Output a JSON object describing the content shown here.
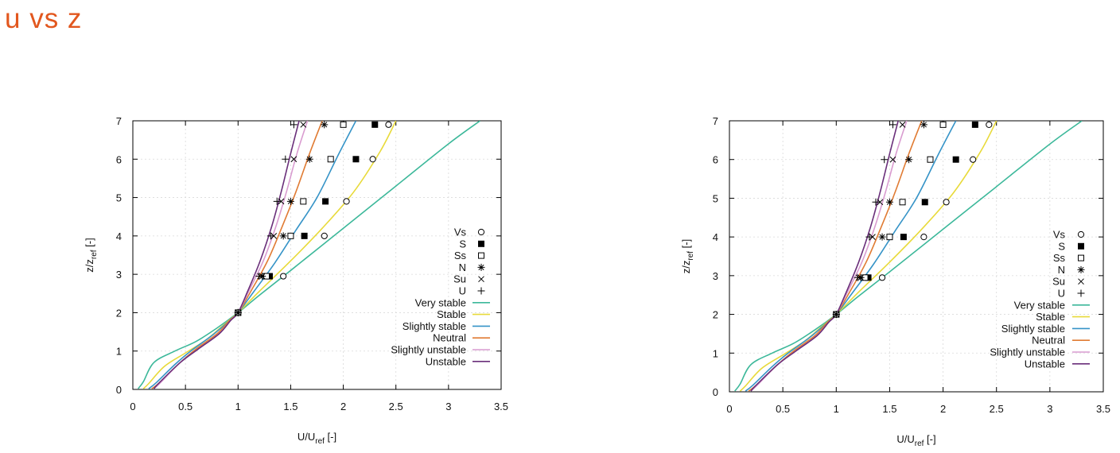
{
  "page": {
    "title": "u vs z"
  },
  "chart_data": [
    {
      "type": "line",
      "title": "",
      "xlabel": "U/U",
      "xlabel_sub": "ref",
      "xlabel_suffix": " [-]",
      "ylabel": "z/z",
      "ylabel_sub": "ref",
      "ylabel_suffix": " [-]",
      "xlim": [
        0,
        3.5
      ],
      "ylim": [
        0,
        7
      ],
      "xticks": [
        "0",
        "0.5",
        "1",
        "1.5",
        "2",
        "2.5",
        "3",
        "3.5"
      ],
      "yticks": [
        "0",
        "1",
        "2",
        "3",
        "4",
        "5",
        "6",
        "7"
      ],
      "grid": true,
      "legend_position": "right",
      "series": [
        {
          "name": "Very stable",
          "color": "#3cb89a",
          "marker": "line",
          "x": [
            0.05,
            0.1,
            0.2,
            0.4,
            0.6,
            0.8,
            1.0,
            1.2,
            1.5,
            2.0,
            2.5,
            3.0,
            3.3
          ],
          "y": [
            0.02,
            0.2,
            0.7,
            1.0,
            1.25,
            1.6,
            2.0,
            2.45,
            3.1,
            4.2,
            5.3,
            6.4,
            7.0
          ]
        },
        {
          "name": "Stable",
          "color": "#e8da3a",
          "marker": "line",
          "x": [
            0.1,
            0.15,
            0.3,
            0.5,
            0.7,
            0.85,
            1.0,
            1.2,
            1.5,
            1.8,
            2.1,
            2.35,
            2.5
          ],
          "y": [
            0.02,
            0.15,
            0.6,
            0.95,
            1.3,
            1.65,
            2.0,
            2.55,
            3.35,
            4.2,
            5.15,
            6.2,
            7.0
          ]
        },
        {
          "name": "Slightly stable",
          "color": "#3593c7",
          "marker": "line",
          "x": [
            0.15,
            0.22,
            0.4,
            0.55,
            0.75,
            0.9,
            1.0,
            1.15,
            1.35,
            1.55,
            1.75,
            1.95,
            2.12
          ],
          "y": [
            0.02,
            0.17,
            0.65,
            1.0,
            1.4,
            1.75,
            2.0,
            2.55,
            3.3,
            4.15,
            5.0,
            6.1,
            7.0
          ]
        },
        {
          "name": "Neutral",
          "color": "#e07b33",
          "marker": "line",
          "x": [
            0.18,
            0.25,
            0.45,
            0.6,
            0.8,
            0.92,
            1.0,
            1.12,
            1.28,
            1.42,
            1.55,
            1.68,
            1.8
          ],
          "y": [
            0.02,
            0.17,
            0.7,
            1.05,
            1.45,
            1.8,
            2.0,
            2.55,
            3.35,
            4.25,
            5.15,
            6.15,
            7.0
          ]
        },
        {
          "name": "Slightly unstable",
          "color": "#d99cd0",
          "marker": "line",
          "x": [
            0.2,
            0.26,
            0.45,
            0.62,
            0.82,
            0.93,
            1.0,
            1.1,
            1.24,
            1.36,
            1.46,
            1.56,
            1.66
          ],
          "y": [
            0.02,
            0.17,
            0.7,
            1.05,
            1.45,
            1.8,
            2.0,
            2.55,
            3.35,
            4.25,
            5.15,
            6.15,
            7.0
          ]
        },
        {
          "name": "Unstable",
          "color": "#6a2f7a",
          "marker": "line",
          "x": [
            0.2,
            0.25,
            0.45,
            0.62,
            0.82,
            0.93,
            1.0,
            1.09,
            1.21,
            1.32,
            1.41,
            1.5,
            1.58
          ],
          "y": [
            0.02,
            0.17,
            0.7,
            1.05,
            1.45,
            1.8,
            2.0,
            2.55,
            3.35,
            4.25,
            5.15,
            6.15,
            7.0
          ]
        },
        {
          "name": "Vs",
          "color": "#000000",
          "marker": "circle",
          "x": [
            1.0,
            1.43,
            1.82,
            2.03,
            2.28,
            2.43
          ],
          "y": [
            2.0,
            2.95,
            4.0,
            4.9,
            6.0,
            6.9
          ]
        },
        {
          "name": "S",
          "color": "#000000",
          "marker": "filled-square",
          "x": [
            1.0,
            1.3,
            1.63,
            1.83,
            2.12,
            2.3
          ],
          "y": [
            2.0,
            2.95,
            4.0,
            4.9,
            6.0,
            6.9
          ]
        },
        {
          "name": "Ss",
          "color": "#000000",
          "marker": "open-square",
          "x": [
            1.0,
            1.27,
            1.5,
            1.62,
            1.88,
            2.0
          ],
          "y": [
            2.0,
            2.95,
            4.0,
            4.9,
            6.0,
            6.9
          ]
        },
        {
          "name": "N",
          "color": "#000000",
          "marker": "asterisk",
          "x": [
            1.0,
            1.23,
            1.43,
            1.5,
            1.68,
            1.82
          ],
          "y": [
            2.0,
            2.95,
            4.0,
            4.9,
            6.0,
            6.9
          ]
        },
        {
          "name": "Su",
          "color": "#000000",
          "marker": "cross",
          "x": [
            1.0,
            1.21,
            1.34,
            1.41,
            1.53,
            1.62
          ],
          "y": [
            2.0,
            2.95,
            4.0,
            4.9,
            6.0,
            6.9
          ]
        },
        {
          "name": "U",
          "color": "#000000",
          "marker": "plus",
          "x": [
            1.0,
            1.2,
            1.31,
            1.37,
            1.45,
            1.53
          ],
          "y": [
            2.0,
            2.95,
            4.0,
            4.9,
            6.0,
            6.9
          ]
        }
      ]
    },
    {
      "type": "line",
      "title": "",
      "xlabel": "U/U",
      "xlabel_sub": "ref",
      "xlabel_suffix": " [-]",
      "ylabel": "z/z",
      "ylabel_sub": "ref",
      "ylabel_suffix": " [-]",
      "xlim": [
        0,
        3.5
      ],
      "ylim": [
        0,
        7
      ],
      "xticks": [
        "0",
        "0.5",
        "1",
        "1.5",
        "2",
        "2.5",
        "3",
        "3.5"
      ],
      "yticks": [
        "0",
        "1",
        "2",
        "3",
        "4",
        "5",
        "6",
        "7"
      ],
      "grid": true,
      "legend_position": "right",
      "series": [
        {
          "name": "Very stable",
          "color": "#3cb89a",
          "marker": "line",
          "x": [
            0.05,
            0.1,
            0.2,
            0.4,
            0.6,
            0.8,
            1.0,
            1.2,
            1.5,
            2.0,
            2.5,
            3.0,
            3.3
          ],
          "y": [
            0.02,
            0.2,
            0.7,
            1.0,
            1.25,
            1.6,
            2.0,
            2.45,
            3.1,
            4.2,
            5.3,
            6.4,
            7.0
          ]
        },
        {
          "name": "Stable",
          "color": "#e8da3a",
          "marker": "line",
          "x": [
            0.1,
            0.15,
            0.3,
            0.5,
            0.7,
            0.85,
            1.0,
            1.2,
            1.5,
            1.8,
            2.1,
            2.35,
            2.5
          ],
          "y": [
            0.02,
            0.15,
            0.6,
            0.95,
            1.3,
            1.65,
            2.0,
            2.55,
            3.35,
            4.2,
            5.15,
            6.2,
            7.0
          ]
        },
        {
          "name": "Slightly stable",
          "color": "#3593c7",
          "marker": "line",
          "x": [
            0.15,
            0.22,
            0.4,
            0.55,
            0.75,
            0.9,
            1.0,
            1.15,
            1.35,
            1.55,
            1.75,
            1.95,
            2.12
          ],
          "y": [
            0.02,
            0.17,
            0.65,
            1.0,
            1.4,
            1.75,
            2.0,
            2.55,
            3.3,
            4.15,
            5.0,
            6.1,
            7.0
          ]
        },
        {
          "name": "Neutral",
          "color": "#e07b33",
          "marker": "line",
          "x": [
            0.18,
            0.25,
            0.45,
            0.6,
            0.8,
            0.92,
            1.0,
            1.12,
            1.28,
            1.42,
            1.55,
            1.68,
            1.8
          ],
          "y": [
            0.02,
            0.17,
            0.7,
            1.05,
            1.45,
            1.8,
            2.0,
            2.55,
            3.35,
            4.25,
            5.15,
            6.15,
            7.0
          ]
        },
        {
          "name": "Slightly unstable",
          "color": "#d99cd0",
          "marker": "line",
          "x": [
            0.2,
            0.26,
            0.45,
            0.62,
            0.82,
            0.93,
            1.0,
            1.1,
            1.24,
            1.36,
            1.46,
            1.56,
            1.66
          ],
          "y": [
            0.02,
            0.17,
            0.7,
            1.05,
            1.45,
            1.8,
            2.0,
            2.55,
            3.35,
            4.25,
            5.15,
            6.15,
            7.0
          ]
        },
        {
          "name": "Unstable",
          "color": "#6a2f7a",
          "marker": "line",
          "x": [
            0.2,
            0.25,
            0.45,
            0.62,
            0.82,
            0.93,
            1.0,
            1.09,
            1.21,
            1.32,
            1.41,
            1.5,
            1.58
          ],
          "y": [
            0.02,
            0.17,
            0.7,
            1.05,
            1.45,
            1.8,
            2.0,
            2.55,
            3.35,
            4.25,
            5.15,
            6.15,
            7.0
          ]
        },
        {
          "name": "Vs",
          "color": "#000000",
          "marker": "circle",
          "x": [
            1.0,
            1.43,
            1.82,
            2.03,
            2.28,
            2.43
          ],
          "y": [
            2.0,
            2.95,
            4.0,
            4.9,
            6.0,
            6.9
          ]
        },
        {
          "name": "S",
          "color": "#000000",
          "marker": "filled-square",
          "x": [
            1.0,
            1.3,
            1.63,
            1.83,
            2.12,
            2.3
          ],
          "y": [
            2.0,
            2.95,
            4.0,
            4.9,
            6.0,
            6.9
          ]
        },
        {
          "name": "Ss",
          "color": "#000000",
          "marker": "open-square",
          "x": [
            1.0,
            1.27,
            1.5,
            1.62,
            1.88,
            2.0
          ],
          "y": [
            2.0,
            2.95,
            4.0,
            4.9,
            6.0,
            6.9
          ]
        },
        {
          "name": "N",
          "color": "#000000",
          "marker": "asterisk",
          "x": [
            1.0,
            1.23,
            1.43,
            1.5,
            1.68,
            1.82
          ],
          "y": [
            2.0,
            2.95,
            4.0,
            4.9,
            6.0,
            6.9
          ]
        },
        {
          "name": "Su",
          "color": "#000000",
          "marker": "cross",
          "x": [
            1.0,
            1.21,
            1.34,
            1.41,
            1.53,
            1.62
          ],
          "y": [
            2.0,
            2.95,
            4.0,
            4.9,
            6.0,
            6.9
          ]
        },
        {
          "name": "U",
          "color": "#000000",
          "marker": "plus",
          "x": [
            1.0,
            1.2,
            1.31,
            1.37,
            1.45,
            1.53
          ],
          "y": [
            2.0,
            2.95,
            4.0,
            4.9,
            6.0,
            6.9
          ]
        }
      ]
    }
  ]
}
